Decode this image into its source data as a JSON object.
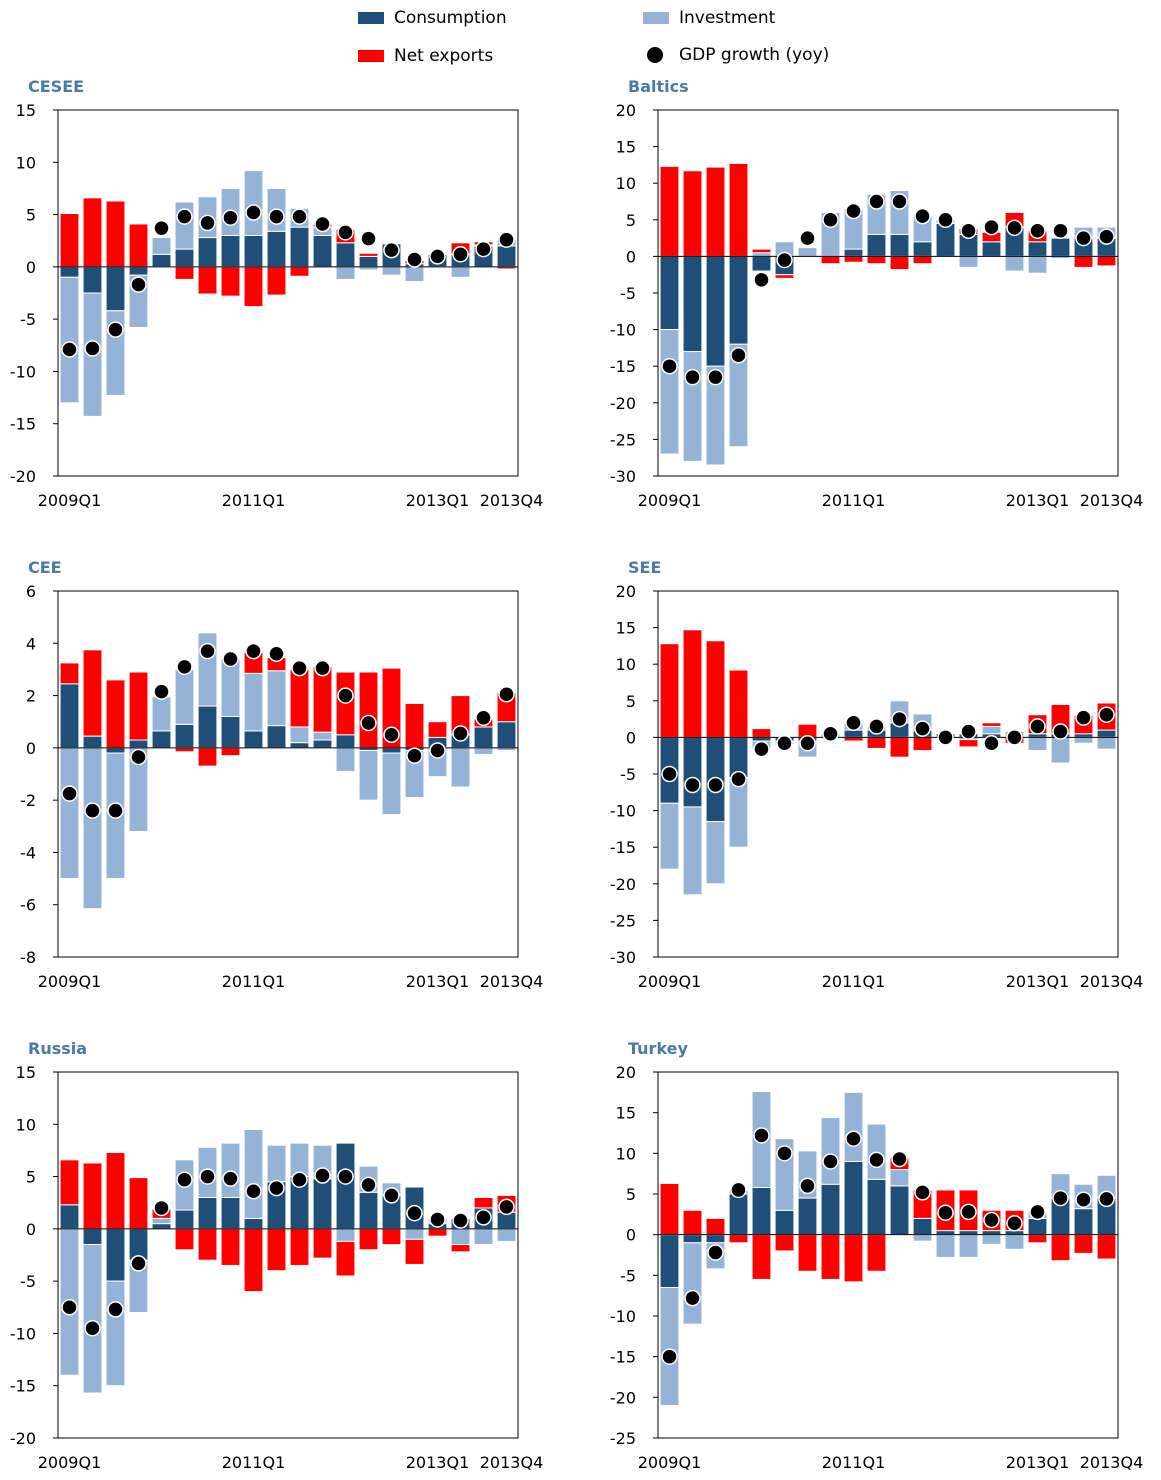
{
  "legend": [
    {
      "name": "Consumption",
      "color": "#1f4e79",
      "marker": "bar"
    },
    {
      "name": "Investment",
      "color": "#95b3d7",
      "marker": "bar"
    },
    {
      "name": "Net exports",
      "color": "#ff0000",
      "marker": "bar"
    },
    {
      "name": "GDP growth (yoy)",
      "color": "#000000",
      "marker": "dot"
    }
  ],
  "chart_data": [
    {
      "type": "bar",
      "title": "CESEE",
      "categories": [
        "2009Q1",
        "2009Q2",
        "2009Q3",
        "2009Q4",
        "2010Q1",
        "2010Q2",
        "2010Q3",
        "2010Q4",
        "2011Q1",
        "2011Q2",
        "2011Q3",
        "2011Q4",
        "2012Q1",
        "2012Q2",
        "2012Q3",
        "2012Q4",
        "2013Q1",
        "2013Q2",
        "2013Q3",
        "2013Q4"
      ],
      "x_tick_labels": [
        "2009Q1",
        "2011Q1",
        "2013Q1",
        "2013Q4"
      ],
      "ylim": [
        -20,
        15
      ],
      "yticks": [
        -20,
        -15,
        -10,
        -5,
        0,
        5,
        10,
        15
      ],
      "series": [
        {
          "name": "Consumption",
          "values": [
            -1.0,
            -2.5,
            -4.2,
            -0.8,
            1.2,
            1.7,
            2.8,
            3.0,
            3.0,
            3.4,
            3.8,
            3.0,
            2.3,
            1.0,
            2.2,
            0.3,
            1.2,
            1.2,
            2.0,
            2.0
          ]
        },
        {
          "name": "Investment",
          "values": [
            -12.0,
            -11.8,
            -8.1,
            -5.0,
            1.6,
            4.5,
            3.9,
            4.5,
            6.2,
            4.1,
            1.8,
            0.8,
            -1.2,
            -0.3,
            -0.8,
            -1.4,
            -0.1,
            -1.0,
            0.1,
            0.6
          ]
        },
        {
          "name": "Net exports",
          "values": [
            5.1,
            6.6,
            6.3,
            4.1,
            -0.1,
            -1.2,
            -2.6,
            -2.8,
            -3.8,
            -2.7,
            -0.9,
            0.3,
            1.3,
            0.3,
            -0.1,
            0.3,
            -0.1,
            1.1,
            0.3,
            -0.2
          ]
        },
        {
          "name": "GDP growth (yoy)",
          "values": [
            -7.9,
            -7.8,
            -6.0,
            -1.7,
            3.7,
            4.8,
            4.2,
            4.7,
            5.2,
            4.8,
            4.8,
            4.1,
            3.3,
            2.7,
            1.6,
            0.7,
            1.0,
            1.2,
            1.7,
            2.6
          ]
        }
      ]
    },
    {
      "type": "bar",
      "title": "Baltics",
      "categories": [
        "2009Q1",
        "2009Q2",
        "2009Q3",
        "2009Q4",
        "2010Q1",
        "2010Q2",
        "2010Q3",
        "2010Q4",
        "2011Q1",
        "2011Q2",
        "2011Q3",
        "2011Q4",
        "2012Q1",
        "2012Q2",
        "2012Q3",
        "2012Q4",
        "2013Q1",
        "2013Q2",
        "2013Q3",
        "2013Q4"
      ],
      "x_tick_labels": [
        "2009Q1",
        "2011Q1",
        "2013Q1",
        "2013Q4"
      ],
      "ylim": [
        -30,
        20
      ],
      "yticks": [
        -30,
        -25,
        -20,
        -15,
        -10,
        -5,
        0,
        5,
        10,
        15,
        20
      ],
      "series": [
        {
          "name": "Consumption",
          "values": [
            -10.0,
            -13.0,
            -15.0,
            -12.0,
            -2.0,
            -2.5,
            0.0,
            0.0,
            1.0,
            3.0,
            3.0,
            2.0,
            4.5,
            3.0,
            2.0,
            4.0,
            2.0,
            2.5,
            2.5,
            2.5
          ]
        },
        {
          "name": "Investment",
          "values": [
            -17.0,
            -15.0,
            -13.5,
            -14.0,
            0.5,
            2.0,
            1.2,
            6.0,
            5.5,
            5.5,
            6.0,
            3.5,
            0.5,
            -1.5,
            0.0,
            -2.0,
            -2.3,
            -0.3,
            1.5,
            1.5
          ]
        },
        {
          "name": "Net exports",
          "values": [
            12.3,
            11.7,
            12.2,
            12.7,
            0.5,
            -0.5,
            0.0,
            -1.0,
            -0.8,
            -1.0,
            -1.8,
            -1.0,
            0.0,
            0.8,
            1.3,
            2.0,
            1.5,
            0.0,
            -1.5,
            -1.3
          ]
        },
        {
          "name": "GDP growth (yoy)",
          "values": [
            -15.0,
            -16.5,
            -16.5,
            -13.5,
            -3.2,
            -0.5,
            2.5,
            5.0,
            6.2,
            7.5,
            7.5,
            5.5,
            5.0,
            3.5,
            4.0,
            3.9,
            3.5,
            3.5,
            2.5,
            2.7
          ]
        }
      ]
    },
    {
      "type": "bar",
      "title": "CEE",
      "categories": [
        "2009Q1",
        "2009Q2",
        "2009Q3",
        "2009Q4",
        "2010Q1",
        "2010Q2",
        "2010Q3",
        "2010Q4",
        "2011Q1",
        "2011Q2",
        "2011Q3",
        "2011Q4",
        "2012Q1",
        "2012Q2",
        "2012Q3",
        "2012Q4",
        "2013Q1",
        "2013Q2",
        "2013Q3",
        "2013Q4"
      ],
      "x_tick_labels": [
        "2009Q1",
        "2011Q1",
        "2013Q1",
        "2013Q4"
      ],
      "ylim": [
        -8,
        6
      ],
      "yticks": [
        -8,
        -6,
        -4,
        -2,
        0,
        2,
        4,
        6
      ],
      "series": [
        {
          "name": "Consumption",
          "values": [
            2.45,
            0.45,
            -0.2,
            0.3,
            0.65,
            0.9,
            1.6,
            1.2,
            0.65,
            0.85,
            0.2,
            0.3,
            0.5,
            -0.1,
            -0.2,
            -0.1,
            0.4,
            0.5,
            0.8,
            1.0
          ]
        },
        {
          "name": "Investment",
          "values": [
            -5.0,
            -6.15,
            -4.8,
            -3.2,
            1.3,
            2.1,
            2.8,
            2.2,
            2.2,
            2.1,
            0.6,
            0.3,
            -0.9,
            -1.9,
            -2.35,
            -1.8,
            -1.1,
            -1.5,
            -0.25,
            -0.1
          ]
        },
        {
          "name": "Net exports",
          "values": [
            0.8,
            3.3,
            2.6,
            2.6,
            0.0,
            -0.15,
            -0.7,
            -0.3,
            0.8,
            0.5,
            2.2,
            2.5,
            2.4,
            2.9,
            3.05,
            1.7,
            0.6,
            1.5,
            0.3,
            1.1
          ]
        },
        {
          "name": "GDP growth (yoy)",
          "values": [
            -1.75,
            -2.4,
            -2.4,
            -0.35,
            2.15,
            3.1,
            3.7,
            3.4,
            3.7,
            3.6,
            3.05,
            3.05,
            2.0,
            0.95,
            0.5,
            -0.3,
            -0.1,
            0.55,
            1.15,
            2.05
          ]
        }
      ]
    },
    {
      "type": "bar",
      "title": "SEE",
      "categories": [
        "2009Q1",
        "2009Q2",
        "2009Q3",
        "2009Q4",
        "2010Q1",
        "2010Q2",
        "2010Q3",
        "2010Q4",
        "2011Q1",
        "2011Q2",
        "2011Q3",
        "2011Q4",
        "2012Q1",
        "2012Q2",
        "2012Q3",
        "2012Q4",
        "2013Q1",
        "2013Q2",
        "2013Q3",
        "2013Q4"
      ],
      "x_tick_labels": [
        "2009Q1",
        "2011Q1",
        "2013Q1",
        "2013Q4"
      ],
      "ylim": [
        -30,
        20
      ],
      "yticks": [
        -30,
        -25,
        -20,
        -15,
        -10,
        -5,
        0,
        5,
        10,
        15,
        20
      ],
      "series": [
        {
          "name": "Consumption",
          "values": [
            -9.0,
            -9.5,
            -11.5,
            -5.5,
            -0.5,
            -0.5,
            -0.5,
            0.0,
            1.0,
            1.0,
            2.0,
            1.0,
            0.5,
            0.5,
            0.5,
            0.0,
            0.5,
            0.5,
            0.5,
            1.0
          ]
        },
        {
          "name": "Investment",
          "values": [
            -9.0,
            -12.0,
            -8.5,
            -9.5,
            -1.0,
            -0.5,
            -2.2,
            0.5,
            1.0,
            0.5,
            3.0,
            2.2,
            0.0,
            -0.3,
            1.0,
            0.8,
            -1.8,
            -3.5,
            -0.8,
            -1.6
          ]
        },
        {
          "name": "Net exports",
          "values": [
            12.8,
            14.7,
            13.2,
            9.2,
            1.2,
            0.0,
            1.8,
            0.0,
            -0.5,
            -1.5,
            -2.7,
            -1.8,
            0.0,
            -1.0,
            0.5,
            -0.8,
            2.6,
            4.0,
            2.5,
            3.7
          ]
        },
        {
          "name": "GDP growth (yoy)",
          "values": [
            -5.0,
            -6.5,
            -6.5,
            -5.7,
            -1.6,
            -0.8,
            -0.8,
            0.5,
            2.0,
            1.5,
            2.5,
            1.2,
            0.0,
            0.8,
            -0.8,
            0.0,
            1.5,
            0.8,
            2.7,
            3.1
          ]
        }
      ]
    },
    {
      "type": "bar",
      "title": "Russia",
      "categories": [
        "2009Q1",
        "2009Q2",
        "2009Q3",
        "2009Q4",
        "2010Q1",
        "2010Q2",
        "2010Q3",
        "2010Q4",
        "2011Q1",
        "2011Q2",
        "2011Q3",
        "2011Q4",
        "2012Q1",
        "2012Q2",
        "2012Q3",
        "2012Q4",
        "2013Q1",
        "2013Q2",
        "2013Q3",
        "2013Q4"
      ],
      "x_tick_labels": [
        "2009Q1",
        "2011Q1",
        "2013Q1",
        "2013Q4"
      ],
      "ylim": [
        -20,
        15
      ],
      "yticks": [
        -20,
        -15,
        -10,
        -5,
        0,
        5,
        10,
        15
      ],
      "series": [
        {
          "name": "Consumption",
          "values": [
            2.3,
            -1.5,
            -5.0,
            -3.0,
            0.5,
            1.8,
            3.0,
            3.0,
            1.0,
            4.5,
            5.0,
            4.8,
            8.2,
            3.5,
            3.2,
            4.0,
            0.5,
            1.0,
            2.0,
            1.6
          ]
        },
        {
          "name": "Investment",
          "values": [
            -14.0,
            -14.2,
            -10.0,
            -5.0,
            0.5,
            4.8,
            4.8,
            5.2,
            8.5,
            3.5,
            3.2,
            3.2,
            -1.2,
            2.5,
            1.2,
            -1.0,
            0.5,
            -1.5,
            -1.5,
            -1.2
          ]
        },
        {
          "name": "Net exports",
          "values": [
            4.3,
            6.3,
            7.3,
            4.9,
            0.9,
            -2.0,
            -3.0,
            -3.5,
            -6.0,
            -4.0,
            -3.5,
            -2.8,
            -3.3,
            -2.0,
            -1.5,
            -2.4,
            -0.7,
            -0.7,
            1.0,
            1.6
          ]
        },
        {
          "name": "GDP growth (yoy)",
          "values": [
            -7.5,
            -9.5,
            -7.7,
            -3.3,
            2.0,
            4.7,
            5.0,
            4.8,
            3.6,
            3.9,
            4.7,
            5.1,
            5.0,
            4.2,
            3.2,
            1.5,
            0.9,
            0.8,
            1.1,
            2.1
          ]
        }
      ]
    },
    {
      "type": "bar",
      "title": "Turkey",
      "categories": [
        "2009Q1",
        "2009Q2",
        "2009Q3",
        "2009Q4",
        "2010Q1",
        "2010Q2",
        "2010Q3",
        "2010Q4",
        "2011Q1",
        "2011Q2",
        "2011Q3",
        "2011Q4",
        "2012Q1",
        "2012Q2",
        "2012Q3",
        "2012Q4",
        "2013Q1",
        "2013Q2",
        "2013Q3",
        "2013Q4"
      ],
      "x_tick_labels": [
        "2009Q1",
        "2011Q1",
        "2013Q1",
        "2013Q4"
      ],
      "ylim": [
        -25,
        20
      ],
      "yticks": [
        -25,
        -20,
        -15,
        -10,
        -5,
        0,
        5,
        10,
        15,
        20
      ],
      "series": [
        {
          "name": "Consumption",
          "values": [
            -6.5,
            -1.0,
            -1.0,
            5.0,
            5.8,
            3.0,
            4.5,
            6.2,
            9.0,
            6.8,
            6.0,
            2.0,
            0.5,
            0.5,
            0.5,
            0.5,
            2.0,
            4.5,
            3.2,
            4.5
          ]
        },
        {
          "name": "Investment",
          "values": [
            -14.5,
            -10.0,
            -3.2,
            0.5,
            11.8,
            8.8,
            5.8,
            8.2,
            8.5,
            6.8,
            2.0,
            -0.8,
            -2.8,
            -2.8,
            -1.2,
            -1.8,
            0.8,
            3.0,
            3.0,
            2.8
          ]
        },
        {
          "name": "Net exports",
          "values": [
            6.3,
            3.0,
            2.0,
            -1.0,
            -5.5,
            -2.0,
            -4.5,
            -5.5,
            -5.8,
            -4.5,
            1.5,
            3.5,
            5.0,
            5.0,
            2.5,
            2.5,
            -1.0,
            -3.2,
            -2.3,
            -3.0
          ]
        },
        {
          "name": "GDP growth (yoy)",
          "values": [
            -15.0,
            -7.8,
            -2.2,
            5.5,
            12.2,
            10.0,
            6.0,
            9.0,
            11.8,
            9.2,
            9.3,
            5.2,
            2.7,
            2.8,
            1.8,
            1.4,
            2.8,
            4.5,
            4.3,
            4.4
          ]
        }
      ]
    }
  ]
}
